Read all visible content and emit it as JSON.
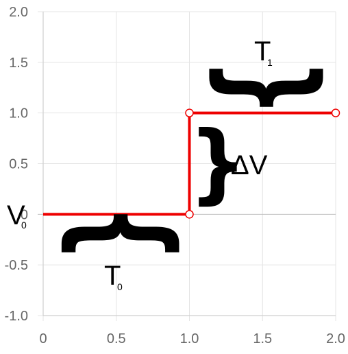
{
  "chart_data": {
    "type": "line",
    "title": "",
    "xlabel": "",
    "ylabel": "",
    "xlim": [
      0,
      2
    ],
    "ylim": [
      -1,
      2
    ],
    "x_ticks": [
      "0",
      "0.5",
      "1.0",
      "1.5",
      "2.0"
    ],
    "y_ticks": [
      "2.0",
      "1.5",
      "1.0",
      "0.5",
      "0",
      "-0.5",
      "-1.0"
    ],
    "grid": true,
    "series": [
      {
        "color": "#ee0000",
        "x": [
          0,
          1,
          1,
          2
        ],
        "y": [
          0,
          0,
          1,
          1
        ],
        "markers": [
          [
            1,
            0
          ],
          [
            1,
            1
          ],
          [
            2,
            1
          ]
        ]
      }
    ],
    "annotations": {
      "v0": {
        "main": "V",
        "sub": "0"
      },
      "t0": {
        "main": "T",
        "sub": "0"
      },
      "t1": {
        "main": "T",
        "sub": "1"
      },
      "delta_v": "ΔV"
    }
  }
}
